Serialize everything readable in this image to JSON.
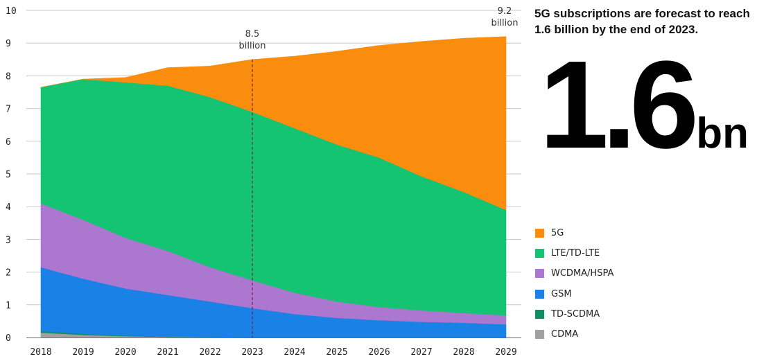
{
  "headline": "5G subscriptions are forecast to reach 1.6 billion by the end of 2023.",
  "big_number": {
    "value": "1.6",
    "unit": "bn"
  },
  "chart_data": {
    "type": "area",
    "stacked": true,
    "x": [
      "2018",
      "2019",
      "2020",
      "2021",
      "2022",
      "2023",
      "2024",
      "2025",
      "2026",
      "2027",
      "2028",
      "2029"
    ],
    "ylim": [
      0,
      10
    ],
    "yticks": [
      0,
      1,
      2,
      3,
      4,
      5,
      6,
      7,
      8,
      9,
      10
    ],
    "grid": "horizontal",
    "legend_position": "right",
    "series": [
      {
        "name": "CDMA",
        "color": "#a0a0a0",
        "values": [
          0.15,
          0.08,
          0.04,
          0.02,
          0.01,
          0,
          0,
          0,
          0,
          0,
          0,
          0
        ]
      },
      {
        "name": "TD-SCDMA",
        "color": "#0e8f63",
        "values": [
          0.05,
          0.03,
          0.02,
          0.01,
          0,
          0,
          0,
          0,
          0,
          0,
          0,
          0
        ]
      },
      {
        "name": "GSM",
        "color": "#1a82e6",
        "values": [
          1.95,
          1.69,
          1.44,
          1.27,
          1.09,
          0.9,
          0.72,
          0.6,
          0.53,
          0.48,
          0.45,
          0.4
        ]
      },
      {
        "name": "WCDMA/HSPA",
        "color": "#ab77cf",
        "values": [
          1.95,
          1.8,
          1.55,
          1.35,
          1.05,
          0.85,
          0.65,
          0.5,
          0.4,
          0.35,
          0.3,
          0.28
        ]
      },
      {
        "name": "LTE/TD-LTE",
        "color": "#14c473",
        "values": [
          3.55,
          4.3,
          4.75,
          5.05,
          5.2,
          5.15,
          5.03,
          4.8,
          4.57,
          4.1,
          3.7,
          3.22
        ]
      },
      {
        "name": "5G",
        "color": "#fa8c0e",
        "values": [
          0,
          0,
          0.15,
          0.55,
          0.95,
          1.6,
          2.2,
          2.85,
          3.43,
          4.12,
          4.7,
          5.3
        ]
      }
    ],
    "annotations": [
      {
        "x": "2023",
        "line1": "8.5",
        "line2": "billion",
        "marker": "dashed-vertical-line"
      },
      {
        "x": "2029",
        "line1": "9.2",
        "line2": "billion"
      }
    ]
  }
}
